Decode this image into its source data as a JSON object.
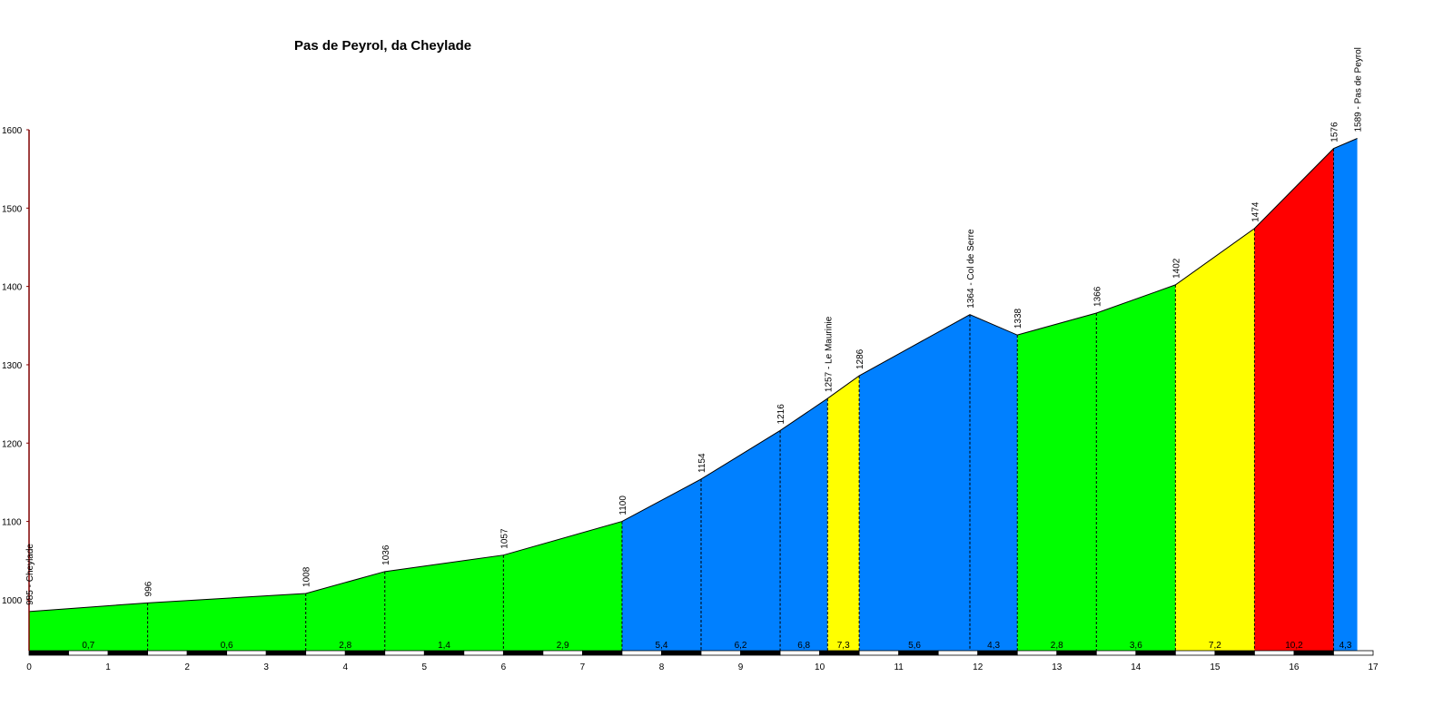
{
  "chart_data": {
    "type": "area",
    "title": "Pas de Peyrol, da Cheylade",
    "xlabel": "",
    "ylabel": "",
    "xlim": [
      0,
      17
    ],
    "ylim": [
      935,
      1600
    ],
    "grid": false,
    "x_ticks": [
      0,
      1,
      2,
      3,
      4,
      5,
      6,
      7,
      8,
      9,
      10,
      11,
      12,
      13,
      14,
      15,
      16,
      17
    ],
    "y_ticks": [
      1000,
      1100,
      1200,
      1300,
      1400,
      1500,
      1600
    ],
    "profile": [
      {
        "km": 0,
        "alt": 985,
        "label": "985 - Cheylade"
      },
      {
        "km": 1.5,
        "alt": 996,
        "label": "996"
      },
      {
        "km": 3.5,
        "alt": 1008,
        "label": "1008"
      },
      {
        "km": 4.5,
        "alt": 1036,
        "label": "1036"
      },
      {
        "km": 6,
        "alt": 1057,
        "label": "1057"
      },
      {
        "km": 7.5,
        "alt": 1100,
        "label": "1100"
      },
      {
        "km": 8.5,
        "alt": 1154,
        "label": "1154"
      },
      {
        "km": 9.5,
        "alt": 1216,
        "label": "1216"
      },
      {
        "km": 10.1,
        "alt": 1257,
        "label": "1257 - Le Maurinie"
      },
      {
        "km": 10.5,
        "alt": 1286,
        "label": "1286"
      },
      {
        "km": 11.9,
        "alt": 1364,
        "label": "1364 - Col de Serre"
      },
      {
        "km": 12.5,
        "alt": 1338,
        "label": "1338"
      },
      {
        "km": 13.5,
        "alt": 1366,
        "label": "1366"
      },
      {
        "km": 14.5,
        "alt": 1402,
        "label": "1402"
      },
      {
        "km": 15.5,
        "alt": 1474,
        "label": "1474"
      },
      {
        "km": 16.5,
        "alt": 1576,
        "label": "1576"
      },
      {
        "km": 16.8,
        "alt": 1589,
        "label": "1589 - Pas de Peyrol"
      }
    ],
    "segments": [
      {
        "from": 0,
        "to": 1.5,
        "gradient": "0,7",
        "color": "#00ff00"
      },
      {
        "from": 1.5,
        "to": 3.5,
        "gradient": "0,6",
        "color": "#00ff00"
      },
      {
        "from": 3.5,
        "to": 4.5,
        "gradient": "2,8",
        "color": "#00ff00"
      },
      {
        "from": 4.5,
        "to": 6,
        "gradient": "1,4",
        "color": "#00ff00"
      },
      {
        "from": 6,
        "to": 7.5,
        "gradient": "2,9",
        "color": "#00ff00"
      },
      {
        "from": 7.5,
        "to": 8.5,
        "gradient": "5,4",
        "color": "#0080ff"
      },
      {
        "from": 8.5,
        "to": 9.5,
        "gradient": "6,2",
        "color": "#0080ff"
      },
      {
        "from": 9.5,
        "to": 10.1,
        "gradient": "6,8",
        "color": "#0080ff"
      },
      {
        "from": 10.1,
        "to": 10.5,
        "gradient": "7,3",
        "color": "#ffff00"
      },
      {
        "from": 10.5,
        "to": 11.9,
        "gradient": "5,6",
        "color": "#0080ff"
      },
      {
        "from": 11.9,
        "to": 12.5,
        "gradient": "4,3",
        "color": "#0080ff"
      },
      {
        "from": 12.5,
        "to": 13.5,
        "gradient": "2,8",
        "color": "#00ff00"
      },
      {
        "from": 13.5,
        "to": 14.5,
        "gradient": "3,6",
        "color": "#00ff00"
      },
      {
        "from": 14.5,
        "to": 15.5,
        "gradient": "7,2",
        "color": "#ffff00"
      },
      {
        "from": 15.5,
        "to": 16.5,
        "gradient": "10,2",
        "color": "#ff0000"
      },
      {
        "from": 16.5,
        "to": 16.8,
        "gradient": "4,3",
        "color": "#0080ff"
      }
    ],
    "colors": {
      "outline": "#000000",
      "y_axis": "#800000",
      "scale_dark": "#000000",
      "scale_light": "#ffffff"
    }
  }
}
